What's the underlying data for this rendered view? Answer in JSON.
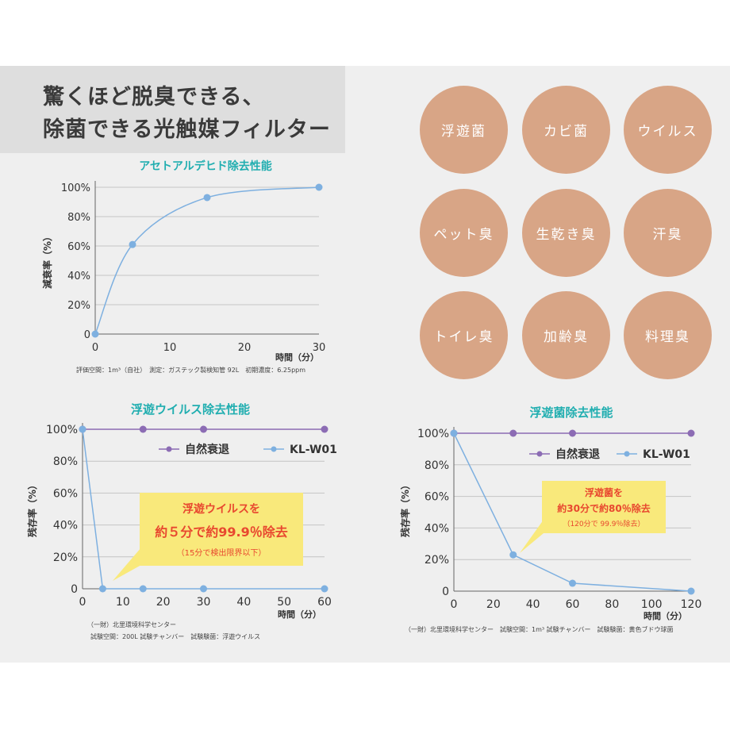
{
  "headline": {
    "line1": "驚くほど脱臭できる、",
    "line2": "除菌できる光触媒フィルター"
  },
  "circles": [
    "浮遊菌",
    "カビ菌",
    "ウイルス",
    "ペット臭",
    "生乾き臭",
    "汗臭",
    "トイレ臭",
    "加齢臭",
    "料理臭"
  ],
  "colors": {
    "circle": "#d8a586",
    "teal_title": "#21aeb0",
    "blue_line": "#7eb0e0",
    "purple_line": "#8c6cb4",
    "callout_bg": "#f9e97b",
    "callout_text": "#e8482f"
  },
  "chart_data": [
    {
      "type": "line",
      "title": "アセトアルデヒド除去性能",
      "ylabel": "減衰率（%）",
      "xlabel": "時間（分）",
      "x_ticks": [
        "0",
        "10",
        "20",
        "30"
      ],
      "y_ticks": [
        "0",
        "20%",
        "40%",
        "60%",
        "80%",
        "100%"
      ],
      "xlim": [
        0,
        30
      ],
      "ylim": [
        0,
        100
      ],
      "series": [
        {
          "name": "減衰率",
          "x": [
            0,
            5,
            15,
            30
          ],
          "y": [
            0,
            61,
            93,
            100
          ]
        }
      ],
      "note": "評価空間：1m³（自社）　測定：ガステック製検知管 92L　初期濃度：6.25ppm"
    },
    {
      "type": "line",
      "title": "浮遊ウイルス除去性能",
      "ylabel": "残存率（%）",
      "xlabel": "時間（分）",
      "x_ticks": [
        "0",
        "10",
        "20",
        "30",
        "40",
        "50",
        "60"
      ],
      "y_ticks": [
        "0",
        "20%",
        "40%",
        "60%",
        "80%",
        "100%"
      ],
      "xlim": [
        0,
        60
      ],
      "ylim": [
        0,
        100
      ],
      "legend": [
        "自然衰退",
        "KL-W01"
      ],
      "series": [
        {
          "name": "自然衰退",
          "x": [
            0,
            15,
            30,
            60
          ],
          "y": [
            100,
            100,
            100,
            100
          ]
        },
        {
          "name": "KL-W01",
          "x": [
            0,
            5,
            15,
            30,
            60
          ],
          "y": [
            100,
            0,
            0,
            0,
            0
          ]
        }
      ],
      "callout": {
        "line1": "浮遊ウイルスを",
        "line2": "約５分で約99.9％除去",
        "line3": "（15分で検出限界以下）"
      },
      "note1": "（一財）北里環境科学センター",
      "note2": "試験空間：200L 試験チャンバー　試験験菌：浮遊ウイルス"
    },
    {
      "type": "line",
      "title": "浮遊菌除去性能",
      "ylabel": "残存率（%）",
      "xlabel": "時間（分）",
      "x_ticks": [
        "0",
        "20",
        "40",
        "60",
        "80",
        "100",
        "120"
      ],
      "y_ticks": [
        "0",
        "20%",
        "40%",
        "60%",
        "80%",
        "100%"
      ],
      "xlim": [
        0,
        120
      ],
      "ylim": [
        0,
        100
      ],
      "legend": [
        "自然衰退",
        "KL-W01"
      ],
      "series": [
        {
          "name": "自然衰退",
          "x": [
            0,
            30,
            60,
            120
          ],
          "y": [
            100,
            100,
            100,
            100
          ]
        },
        {
          "name": "KL-W01",
          "x": [
            0,
            30,
            60,
            120
          ],
          "y": [
            100,
            23,
            5,
            0
          ]
        }
      ],
      "callout": {
        "line1": "浮遊菌を",
        "line2": "約30分で約80％除去",
        "line3": "（120分で 99.9％除去）"
      },
      "note": "（一財）北里環境科学センター　試験空間：1m³ 試験チャンバー　試験験菌：黄色ブドウ球菌"
    }
  ]
}
